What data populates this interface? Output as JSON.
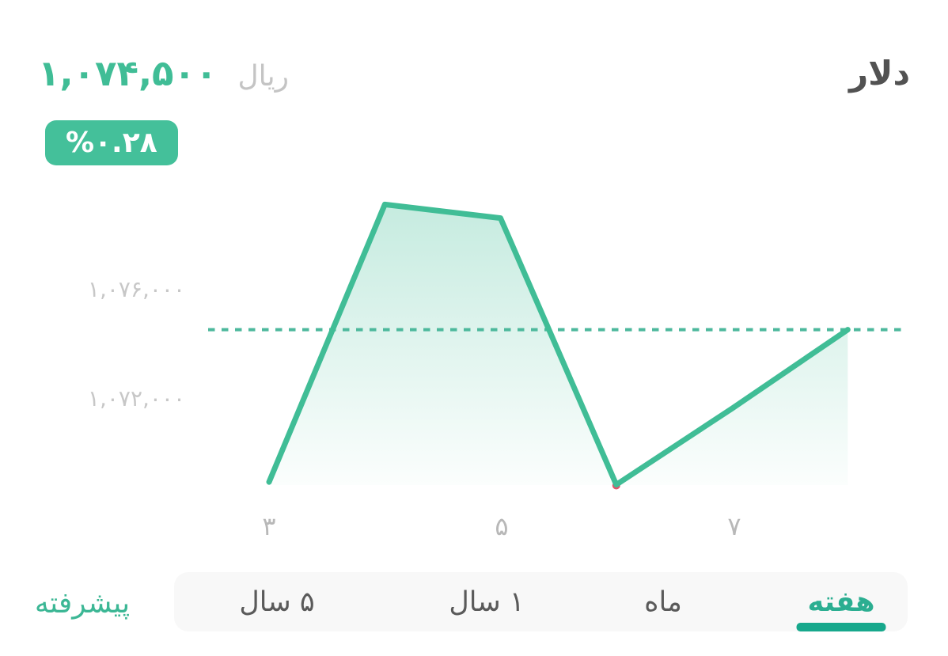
{
  "header": {
    "title": "دلار",
    "price": "۱,۰۷۴,۵۰۰",
    "currency_label": "ریال",
    "change_badge": "%۰.۲۸"
  },
  "colors": {
    "accent": "#40bd96",
    "underline": "#17a88c",
    "badge_bg": "#44c09a",
    "badge_text": "#ffffff",
    "dotted_line": "#4cb89c",
    "min_marker": "#e0566b",
    "title_text": "#525252",
    "tab_active_text": "#2bae91",
    "advanced_text": "#3cb795"
  },
  "chart_data": {
    "type": "area",
    "title": "دلار",
    "x": [
      3,
      4,
      5,
      6,
      7,
      8
    ],
    "x_tick_labels": [
      "۳",
      "۵",
      "۷"
    ],
    "x_ticks_at": [
      3,
      5,
      7
    ],
    "series": [
      {
        "name": "دلار (ریال)",
        "values": [
          1068900,
          1079100,
          1078600,
          1068800,
          1071600,
          1074500
        ]
      }
    ],
    "y_tick_labels": [
      "۱,۰۷۶,۰۰۰",
      "۱,۰۷۲,۰۰۰"
    ],
    "y_ticks_at": [
      1076000,
      1072000
    ],
    "ylim": [
      1067900,
      1079600
    ],
    "current_value": 1074500,
    "current_value_label": "۱,۰۷۴,۵۰۰",
    "min_value": 1068800,
    "reference_line": "dotted horizontal line at current value",
    "grid": false,
    "legend_position": "none"
  },
  "tabs": {
    "advanced_label": "پیشرفته",
    "items": [
      {
        "label": "هفته",
        "active": true
      },
      {
        "label": "ماه",
        "active": false
      },
      {
        "label": "۱ سال",
        "active": false
      },
      {
        "label": "۵ سال",
        "active": false
      }
    ]
  }
}
